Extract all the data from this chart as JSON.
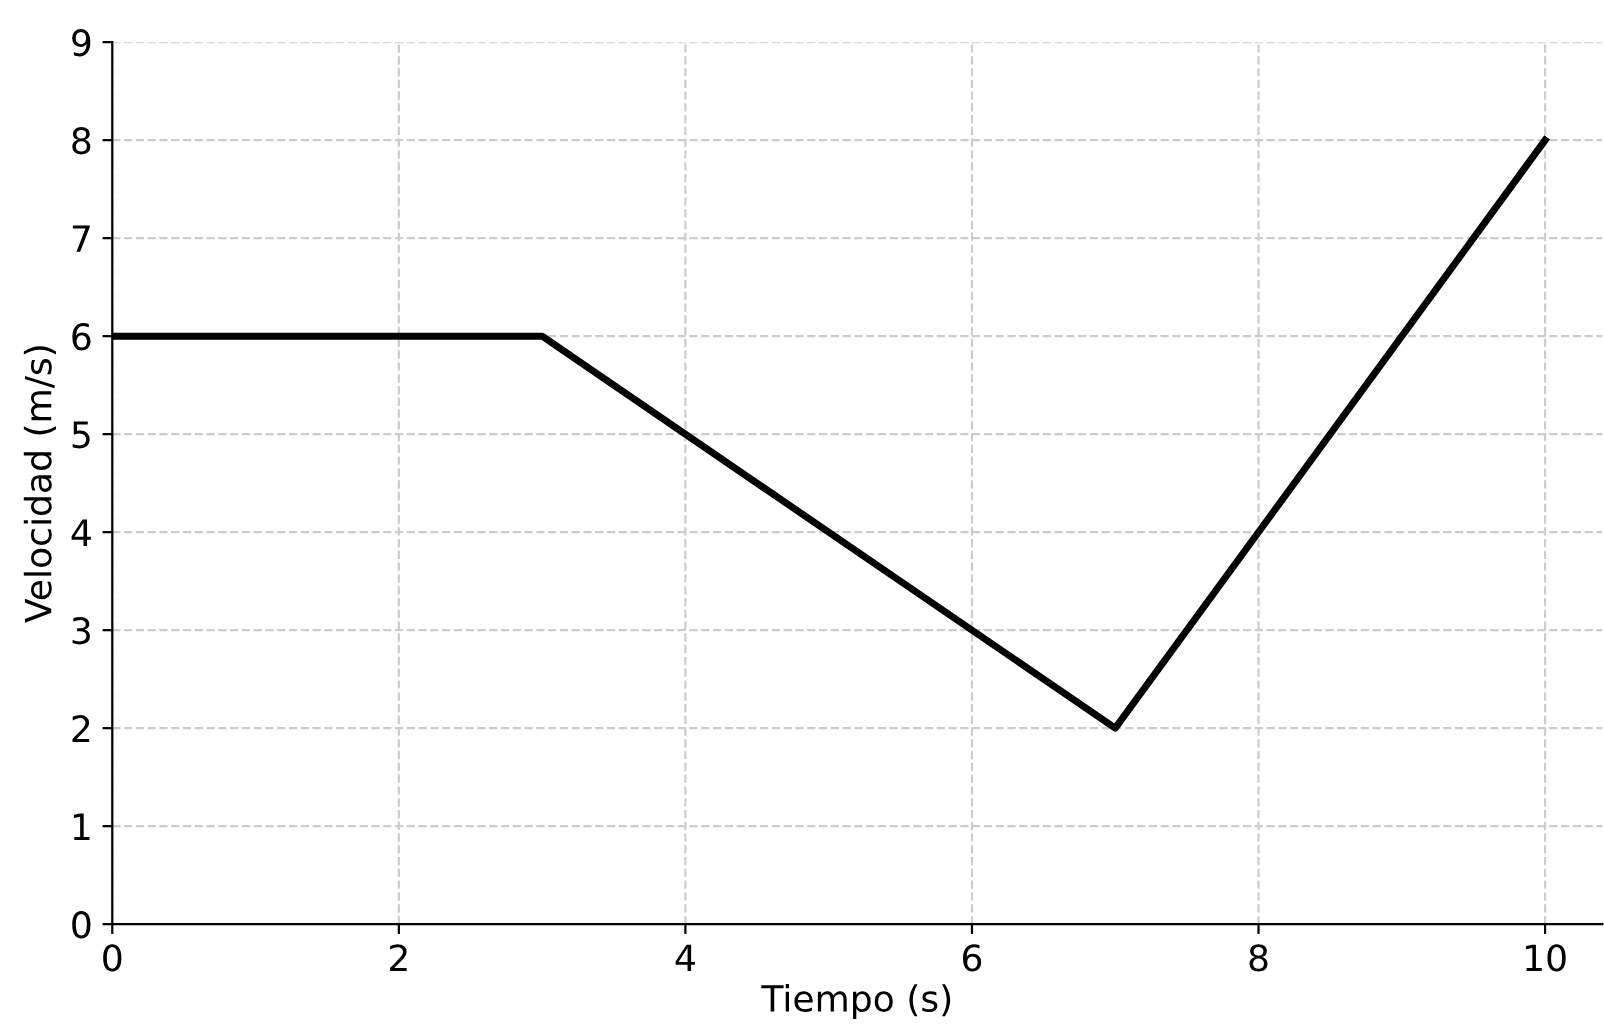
{
  "chart_data": {
    "type": "line",
    "xlabel": "Tiempo (s)",
    "ylabel": "Velocidad (m/s)",
    "x": [
      0,
      3,
      7,
      10
    ],
    "series": [
      {
        "color": "#000000",
        "values": [
          6,
          6,
          2,
          8
        ]
      }
    ],
    "xlim": [
      0,
      10.4
    ],
    "xticks": [
      0,
      2,
      4,
      6,
      8,
      10
    ],
    "ylim": [
      0,
      9
    ],
    "yticks": [
      0,
      1,
      2,
      3,
      4,
      5,
      6,
      7,
      8,
      9
    ],
    "grid": true,
    "line_style": "solid"
  }
}
